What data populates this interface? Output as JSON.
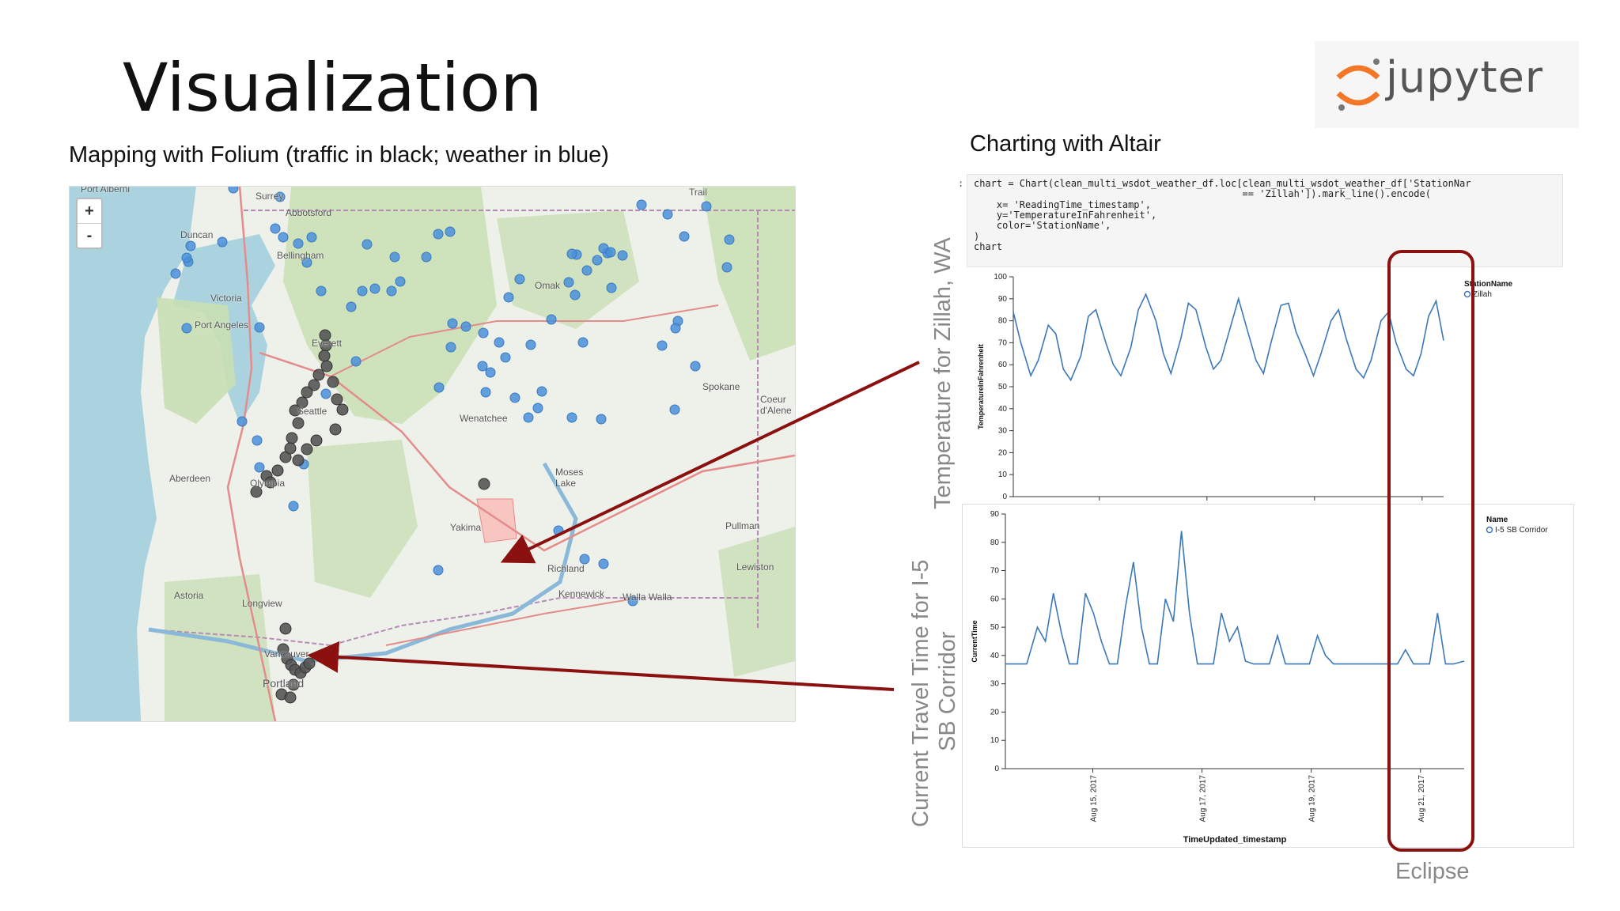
{
  "slide": {
    "title": "Visualization",
    "map_caption": "Mapping with Folium (traffic in black; weather in blue)",
    "chart_caption": "Charting with Altair",
    "logo_text": "jupyter",
    "eclipse_label": "Eclipse"
  },
  "map": {
    "zoom_in": "+",
    "zoom_out": "-",
    "labels": [
      "Port Alberni",
      "Surrey",
      "Abbotsford",
      "Duncan",
      "Bellingham",
      "Trail",
      "Victoria",
      "Port Angeles",
      "Everett",
      "Omak",
      "Seattle",
      "Wenatchee",
      "Spokane",
      "Coeur d'Alene",
      "Aberdeen",
      "Olympia",
      "Moses Lake",
      "Yakima",
      "Pullman",
      "Lewiston",
      "Richland",
      "Kennewick",
      "Walla Walla",
      "Astoria",
      "Longview",
      "Vancouver",
      "Portland"
    ],
    "colors": {
      "traffic": "#555555",
      "weather": "#4a90d9"
    }
  },
  "code": {
    "prompt": ":",
    "lines": [
      "chart = Chart(clean_multi_wsdot_weather_df.loc[clean_multi_wsdot_weather_df['StationNar",
      "                                               == 'Zillah']).mark_line().encode(",
      "    x= 'ReadingTime_timestamp',",
      "    y='TemperatureInFahrenheit',",
      "    color='StationName',",
      ")",
      "chart"
    ]
  },
  "side_labels": {
    "chart1": "Temperature for Zillah, WA",
    "chart2_line1": "Current Travel Time for I-5",
    "chart2_line2": "SB Corridor"
  },
  "chart_data": [
    {
      "type": "line",
      "title": "",
      "xlabel": "",
      "ylabel": "TemperatureInFahrenheit",
      "ylim": [
        0,
        100
      ],
      "yticks": [
        0,
        10,
        20,
        30,
        40,
        50,
        60,
        70,
        80,
        90,
        100
      ],
      "legend_title": "StationName",
      "legend_placement": "top-right",
      "color": "#3a78b8",
      "series": [
        {
          "name": "Zillah",
          "x": [
            0,
            0.3,
            0.7,
            1,
            1.4,
            1.7,
            2,
            2.3,
            2.7,
            3,
            3.3,
            3.7,
            4,
            4.3,
            4.7,
            5,
            5.3,
            5.7,
            6,
            6.3,
            6.7,
            7,
            7.3,
            7.7,
            8,
            8.3,
            8.7,
            9,
            9.3,
            9.7,
            10,
            10.3,
            10.7,
            11,
            11.3,
            11.7,
            12,
            12.3,
            12.7,
            13,
            13.3,
            13.7,
            14,
            14.3,
            14.7,
            15,
            15.3,
            15.7,
            16,
            16.3,
            16.6,
            16.9,
            17.2
          ],
          "y": [
            84,
            70,
            55,
            62,
            78,
            74,
            58,
            53,
            64,
            82,
            85,
            70,
            60,
            55,
            68,
            85,
            92,
            80,
            65,
            56,
            72,
            88,
            85,
            68,
            58,
            62,
            78,
            90,
            78,
            62,
            56,
            70,
            87,
            88,
            75,
            64,
            55,
            65,
            80,
            85,
            72,
            58,
            54,
            62,
            80,
            84,
            70,
            58,
            55,
            65,
            82,
            89,
            71
          ]
        }
      ]
    },
    {
      "type": "line",
      "title": "",
      "xlabel": "TimeUpdated_timestamp",
      "ylabel": "CurrentTime",
      "ylim": [
        0,
        90
      ],
      "yticks": [
        0,
        10,
        20,
        30,
        40,
        50,
        60,
        70,
        80,
        90
      ],
      "xtick_labels": [
        "Aug 15, 2017",
        "Aug 17, 2017",
        "Aug 19, 2017",
        "Aug 21, 2017"
      ],
      "legend_title": "Name",
      "legend_placement": "top-right",
      "color": "#3a78b8",
      "series": [
        {
          "name": "I-5 SB Corridor",
          "x": [
            0,
            0.4,
            0.8,
            1.2,
            1.5,
            1.8,
            2.1,
            2.4,
            2.7,
            3.0,
            3.3,
            3.6,
            3.9,
            4.2,
            4.5,
            4.8,
            5.1,
            5.4,
            5.7,
            6.0,
            6.3,
            6.6,
            6.9,
            7.2,
            7.5,
            7.8,
            8.1,
            8.4,
            8.7,
            9.0,
            9.3,
            9.6,
            9.9,
            10.2,
            10.5,
            10.8,
            11.1,
            11.4,
            11.7,
            12.0,
            12.3,
            12.6,
            12.9,
            13.2,
            13.5,
            13.8,
            14.1,
            14.4,
            14.7,
            15.0,
            15.3,
            15.6,
            15.9,
            16.2,
            16.5,
            16.8,
            17.2
          ],
          "y": [
            37,
            37,
            37,
            50,
            45,
            62,
            48,
            37,
            37,
            62,
            55,
            45,
            37,
            37,
            57,
            73,
            50,
            37,
            37,
            60,
            52,
            84,
            55,
            37,
            37,
            37,
            55,
            45,
            50,
            38,
            37,
            37,
            37,
            47,
            37,
            37,
            37,
            37,
            47,
            40,
            37,
            37,
            37,
            37,
            37,
            37,
            37,
            37,
            37,
            42,
            37,
            37,
            37,
            55,
            37,
            37,
            38
          ]
        }
      ]
    }
  ]
}
